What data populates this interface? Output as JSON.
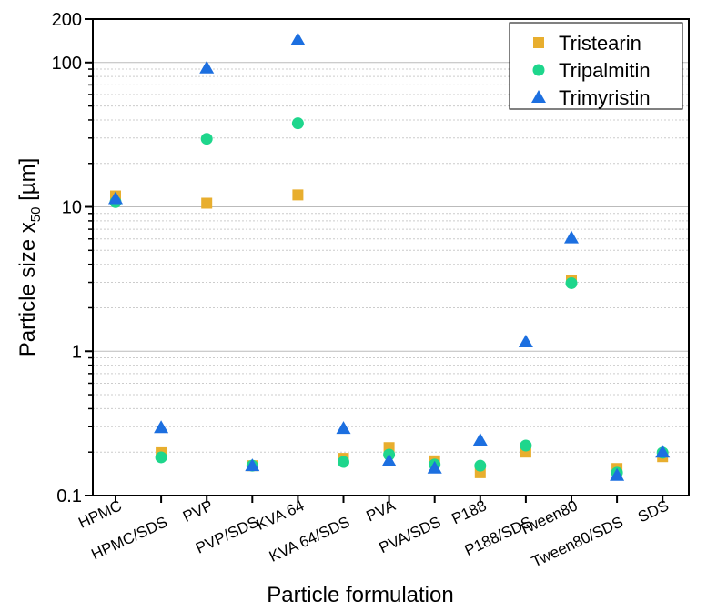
{
  "chart_data": {
    "type": "scatter",
    "title": "",
    "xlabel": "Particle formulation",
    "ylabel_main": "Particle size x",
    "ylabel_sub": "50",
    "ylabel_unit": " [µm]",
    "yscale": "log",
    "ylim": [
      0.1,
      200
    ],
    "yticks": [
      0.1,
      1,
      10,
      100,
      200
    ],
    "ytick_labels": [
      "0.1",
      "1",
      "10",
      "100",
      "200"
    ],
    "grid": "horizontal major solid, minor dotted",
    "legend_position": "top-right",
    "categories": [
      "HPMC",
      "HPMC/SDS",
      "PVP",
      "PVP/SDS",
      "KVA 64",
      "KVA 64/SDS",
      "PVA",
      "PVA/SDS",
      "P188",
      "P188/SDS",
      "Tween80",
      "Tween80/SDS",
      "SDS"
    ],
    "series": [
      {
        "name": "Tristearin",
        "marker": "square",
        "color": "#E8AE2E",
        "values": [
          11.9,
          0.198,
          10.6,
          0.161,
          12.1,
          0.181,
          0.215,
          0.174,
          0.144,
          0.2,
          3.1,
          0.154,
          0.186
        ]
      },
      {
        "name": "Tripalmitin",
        "marker": "circle",
        "color": "#1ED68C",
        "values": [
          10.8,
          0.184,
          29.6,
          0.161,
          37.9,
          0.171,
          0.192,
          0.164,
          0.161,
          0.222,
          2.96,
          0.144,
          0.198
        ]
      },
      {
        "name": "Trimyristin",
        "marker": "triangle",
        "color": "#1C6FE0",
        "values": [
          11.4,
          0.296,
          91.7,
          0.161,
          144,
          0.292,
          0.174,
          0.155,
          0.242,
          1.16,
          6.1,
          0.138,
          0.2
        ]
      }
    ]
  }
}
